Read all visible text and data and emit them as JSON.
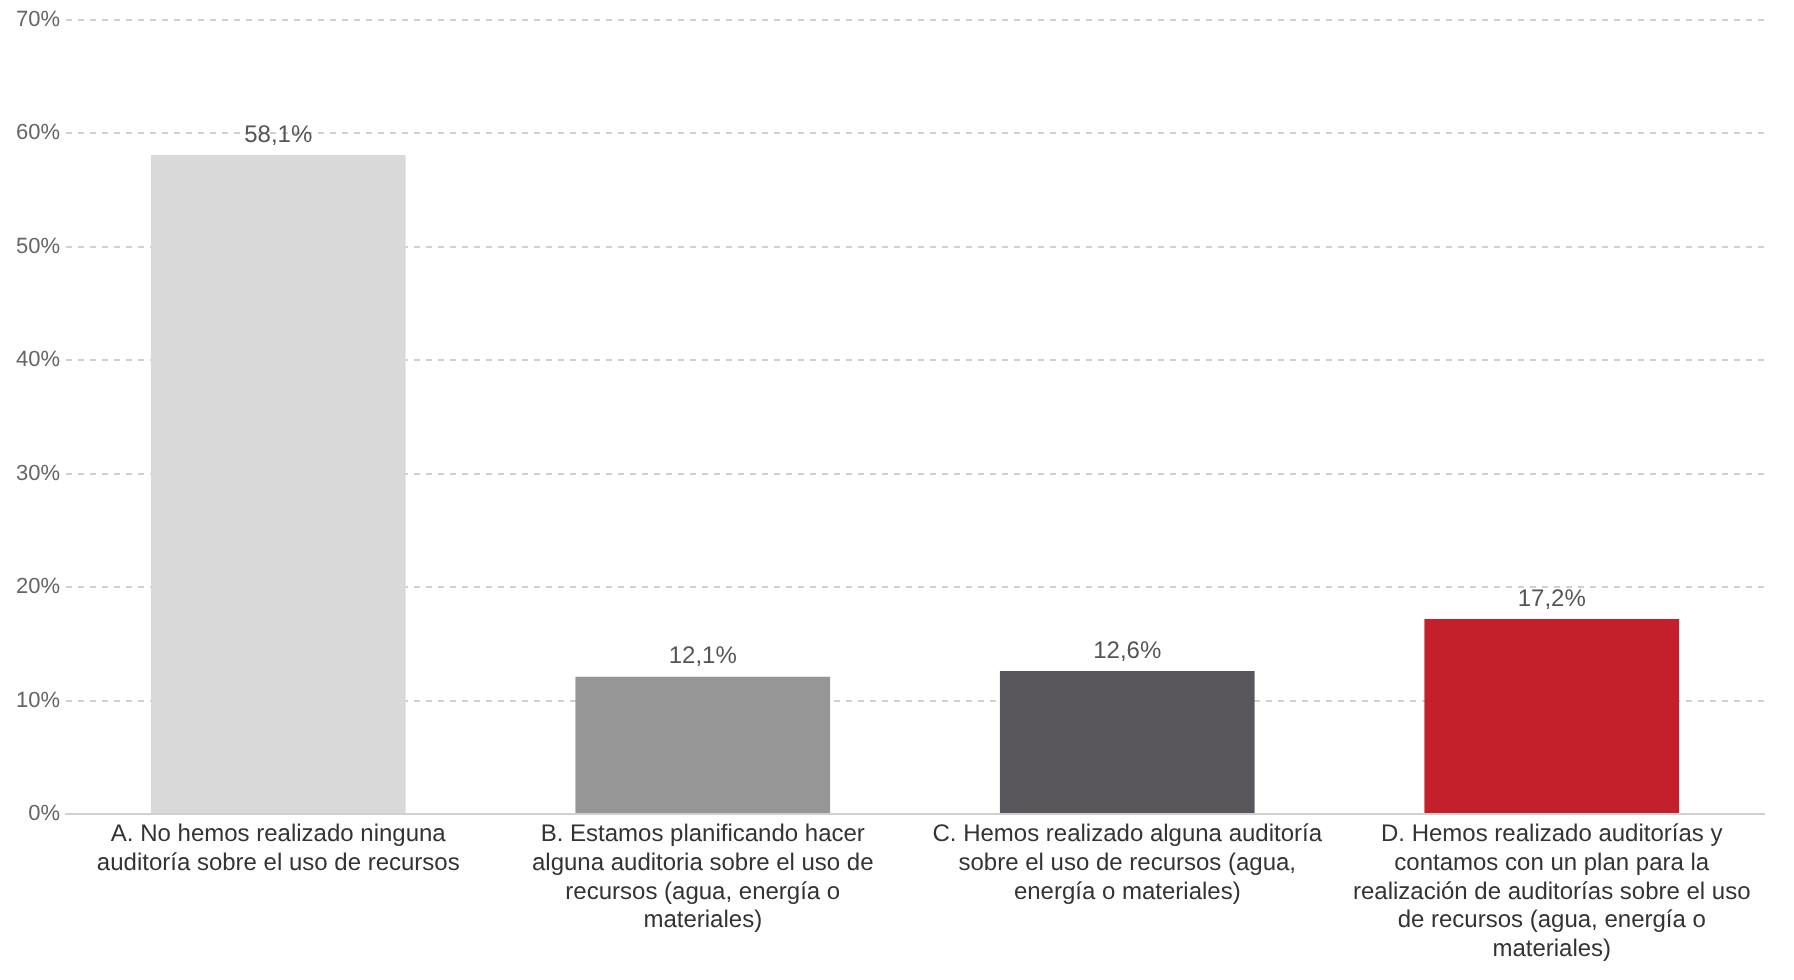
{
  "chart_data": {
    "type": "bar",
    "categories": [
      "A. No hemos realizado ninguna auditoría sobre el uso de recursos",
      "B. Estamos planificando hacer alguna auditoria sobre el uso de recursos (agua, energía o materiales)",
      "C. Hemos realizado alguna auditoría sobre el uso de recursos (agua, energía o materiales)",
      "D. Hemos realizado auditorías y contamos con un plan para la realización de auditorías sobre el uso de recursos (agua, energía o materiales)"
    ],
    "values": [
      58.1,
      12.1,
      12.6,
      17.2
    ],
    "colors": [
      "#d9d9d9",
      "#969696",
      "#58565b",
      "#c4202b"
    ],
    "value_labels": [
      "58,1%",
      "12,1%",
      "12,6%",
      "17,2%"
    ],
    "ylim": [
      0,
      70
    ],
    "yticks": [
      {
        "value": 0,
        "label": "0%"
      },
      {
        "value": 10,
        "label": "10%"
      },
      {
        "value": 20,
        "label": "20%"
      },
      {
        "value": 30,
        "label": "30%"
      },
      {
        "value": 40,
        "label": "40%"
      },
      {
        "value": 50,
        "label": "50%"
      },
      {
        "value": 60,
        "label": "60%"
      },
      {
        "value": 70,
        "label": "70%"
      }
    ],
    "grid": "y",
    "legend": false
  }
}
